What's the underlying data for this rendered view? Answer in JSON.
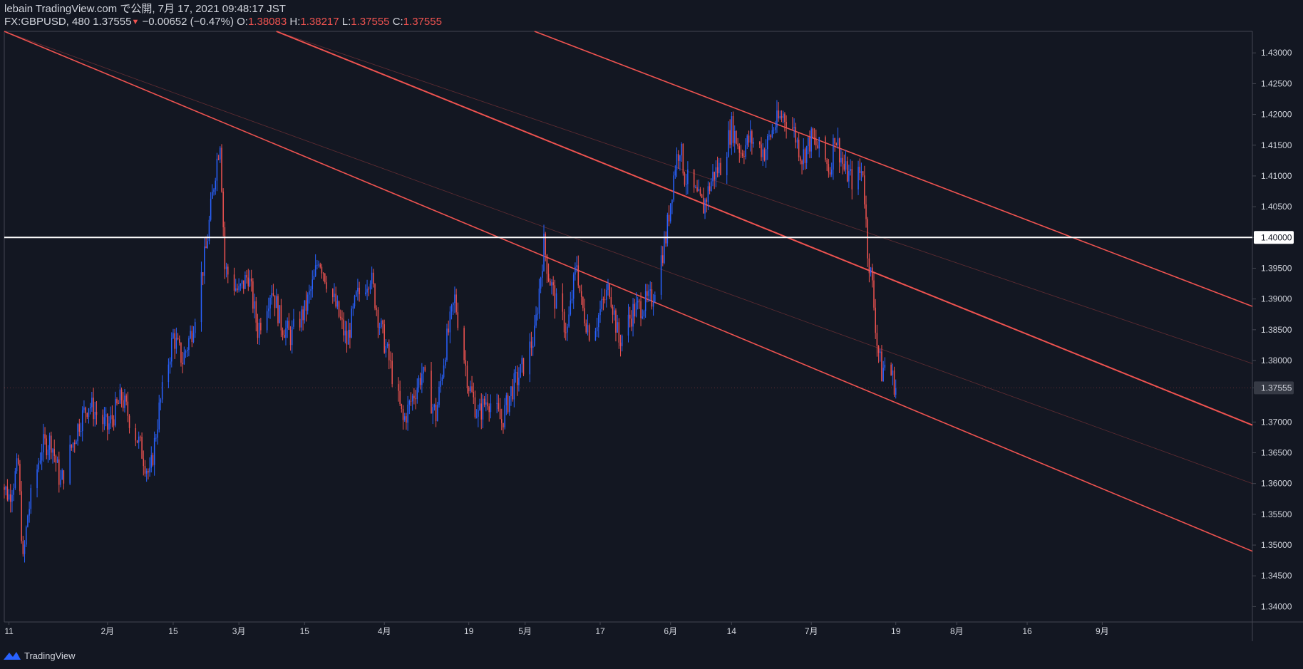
{
  "header": {
    "line1": "lebain TradingView.com で公開, 7月 17, 2021 09:48:17 JST",
    "symbol": "FX:GBPUSD, 480",
    "last": "1.37555",
    "change_arrow": "▼",
    "change": "−0.00652 (−0.47%)",
    "o_label": "O:",
    "o_value": "1.38083",
    "h_label": "H:",
    "h_value": "1.38217",
    "l_label": "L:",
    "l_value": "1.37555",
    "c_label": "C:",
    "c_value": "1.37555"
  },
  "footer": {
    "brand": "TradingView"
  },
  "colors": {
    "background": "#131722",
    "up_candle": "#2962ff",
    "down_candle": "#ef5350",
    "text": "#d1d4dc",
    "channel": "#ef5350",
    "level_line": "#ffffff"
  },
  "chart_data": {
    "type": "candlestick",
    "symbol": "FX:GBPUSD",
    "interval": "480",
    "ylim": [
      1.3375,
      1.4335
    ],
    "y_ticks": [
      "1.43000",
      "1.42500",
      "1.42000",
      "1.41500",
      "1.41000",
      "1.40500",
      "1.40000",
      "1.39500",
      "1.39000",
      "1.38500",
      "1.38000",
      "1.37555",
      "1.37000",
      "1.36500",
      "1.36000",
      "1.35500",
      "1.35000",
      "1.34500",
      "1.34000"
    ],
    "y_tick_values": [
      1.43,
      1.425,
      1.42,
      1.415,
      1.41,
      1.405,
      1.4,
      1.395,
      1.39,
      1.385,
      1.38,
      1.37555,
      1.37,
      1.365,
      1.36,
      1.355,
      1.35,
      1.345,
      1.34
    ],
    "highlight_ticks": [
      "1.40000",
      "1.37555"
    ],
    "x_range": [
      "2021-01-10",
      "2021-10-03"
    ],
    "x_ticks": [
      {
        "date": "2021-01-11",
        "label": "11"
      },
      {
        "date": "2021-02-01",
        "label": "2月"
      },
      {
        "date": "2021-02-15",
        "label": "15"
      },
      {
        "date": "2021-03-01",
        "label": "3月"
      },
      {
        "date": "2021-03-15",
        "label": "15"
      },
      {
        "date": "2021-04-01",
        "label": "4月"
      },
      {
        "date": "2021-04-19",
        "label": "19"
      },
      {
        "date": "2021-05-01",
        "label": "5月"
      },
      {
        "date": "2021-05-17",
        "label": "17"
      },
      {
        "date": "2021-06-01",
        "label": "6月"
      },
      {
        "date": "2021-06-14",
        "label": "14"
      },
      {
        "date": "2021-07-01",
        "label": "7月"
      },
      {
        "date": "2021-07-19",
        "label": "19"
      },
      {
        "date": "2021-08-01",
        "label": "8月"
      },
      {
        "date": "2021-08-16",
        "label": "16"
      },
      {
        "date": "2021-09-01",
        "label": "9月"
      }
    ],
    "horizontal_line": 1.4,
    "current_price": 1.37555,
    "price_path": [
      [
        "2021-01-08",
        1.362
      ],
      [
        "2021-01-11",
        1.358
      ],
      [
        "2021-01-13",
        1.363
      ],
      [
        "2021-01-14",
        1.347
      ],
      [
        "2021-01-15",
        1.355
      ],
      [
        "2021-01-18",
        1.366
      ],
      [
        "2021-01-20",
        1.367
      ],
      [
        "2021-01-22",
        1.36
      ],
      [
        "2021-01-26",
        1.37
      ],
      [
        "2021-01-28",
        1.373
      ],
      [
        "2021-02-01",
        1.369
      ],
      [
        "2021-02-04",
        1.374
      ],
      [
        "2021-02-08",
        1.366
      ],
      [
        "2021-02-10",
        1.361
      ],
      [
        "2021-02-12",
        1.372
      ],
      [
        "2021-02-15",
        1.384
      ],
      [
        "2021-02-17",
        1.38
      ],
      [
        "2021-02-19",
        1.385
      ],
      [
        "2021-02-22",
        1.398
      ],
      [
        "2021-02-24",
        1.411
      ],
      [
        "2021-02-25",
        1.416
      ],
      [
        "2021-02-26",
        1.395
      ],
      [
        "2021-03-01",
        1.391
      ],
      [
        "2021-03-03",
        1.394
      ],
      [
        "2021-03-05",
        1.385
      ],
      [
        "2021-03-08",
        1.392
      ],
      [
        "2021-03-10",
        1.386
      ],
      [
        "2021-03-12",
        1.384
      ],
      [
        "2021-03-15",
        1.388
      ],
      [
        "2021-03-17",
        1.393
      ],
      [
        "2021-03-18",
        1.397
      ],
      [
        "2021-03-22",
        1.388
      ],
      [
        "2021-03-24",
        1.383
      ],
      [
        "2021-03-26",
        1.39
      ],
      [
        "2021-03-29",
        1.394
      ],
      [
        "2021-03-31",
        1.386
      ],
      [
        "2021-04-02",
        1.38
      ],
      [
        "2021-04-05",
        1.37
      ],
      [
        "2021-04-07",
        1.374
      ],
      [
        "2021-04-09",
        1.378
      ],
      [
        "2021-04-12",
        1.371
      ],
      [
        "2021-04-14",
        1.382
      ],
      [
        "2021-04-16",
        1.39
      ],
      [
        "2021-04-19",
        1.376
      ],
      [
        "2021-04-21",
        1.371
      ],
      [
        "2021-04-23",
        1.374
      ],
      [
        "2021-04-26",
        1.37
      ],
      [
        "2021-04-28",
        1.375
      ],
      [
        "2021-04-30",
        1.378
      ],
      [
        "2021-05-03",
        1.384
      ],
      [
        "2021-05-05",
        1.399
      ],
      [
        "2021-05-06",
        1.394
      ],
      [
        "2021-05-08",
        1.388
      ],
      [
        "2021-05-10",
        1.385
      ],
      [
        "2021-05-12",
        1.396
      ],
      [
        "2021-05-13",
        1.389
      ],
      [
        "2021-05-15",
        1.384
      ],
      [
        "2021-05-17",
        1.388
      ],
      [
        "2021-05-19",
        1.392
      ],
      [
        "2021-05-21",
        1.383
      ],
      [
        "2021-05-24",
        1.388
      ],
      [
        "2021-05-26",
        1.389
      ],
      [
        "2021-05-28",
        1.39
      ],
      [
        "2021-05-31",
        1.4
      ],
      [
        "2021-06-02",
        1.412
      ],
      [
        "2021-06-03",
        1.415
      ],
      [
        "2021-06-04",
        1.41
      ],
      [
        "2021-06-07",
        1.406
      ],
      [
        "2021-06-08",
        1.405
      ],
      [
        "2021-06-10",
        1.41
      ],
      [
        "2021-06-12",
        1.412
      ],
      [
        "2021-06-14",
        1.418
      ],
      [
        "2021-06-16",
        1.414
      ],
      [
        "2021-06-18",
        1.416
      ],
      [
        "2021-06-21",
        1.414
      ],
      [
        "2021-06-23",
        1.418
      ],
      [
        "2021-06-25",
        1.42
      ],
      [
        "2021-06-27",
        1.418
      ],
      [
        "2021-06-29",
        1.413
      ],
      [
        "2021-07-01",
        1.416
      ],
      [
        "2021-07-03",
        1.414
      ],
      [
        "2021-07-05",
        1.411
      ],
      [
        "2021-07-06",
        1.417
      ],
      [
        "2021-07-08",
        1.411
      ],
      [
        "2021-07-10",
        1.409
      ],
      [
        "2021-07-12",
        1.411
      ],
      [
        "2021-07-13",
        1.398
      ],
      [
        "2021-07-14",
        1.392
      ],
      [
        "2021-07-15",
        1.383
      ],
      [
        "2021-07-16",
        1.378
      ],
      [
        "2021-07-17",
        1.38
      ],
      [
        "2021-07-19",
        1.3756
      ]
    ]
  }
}
